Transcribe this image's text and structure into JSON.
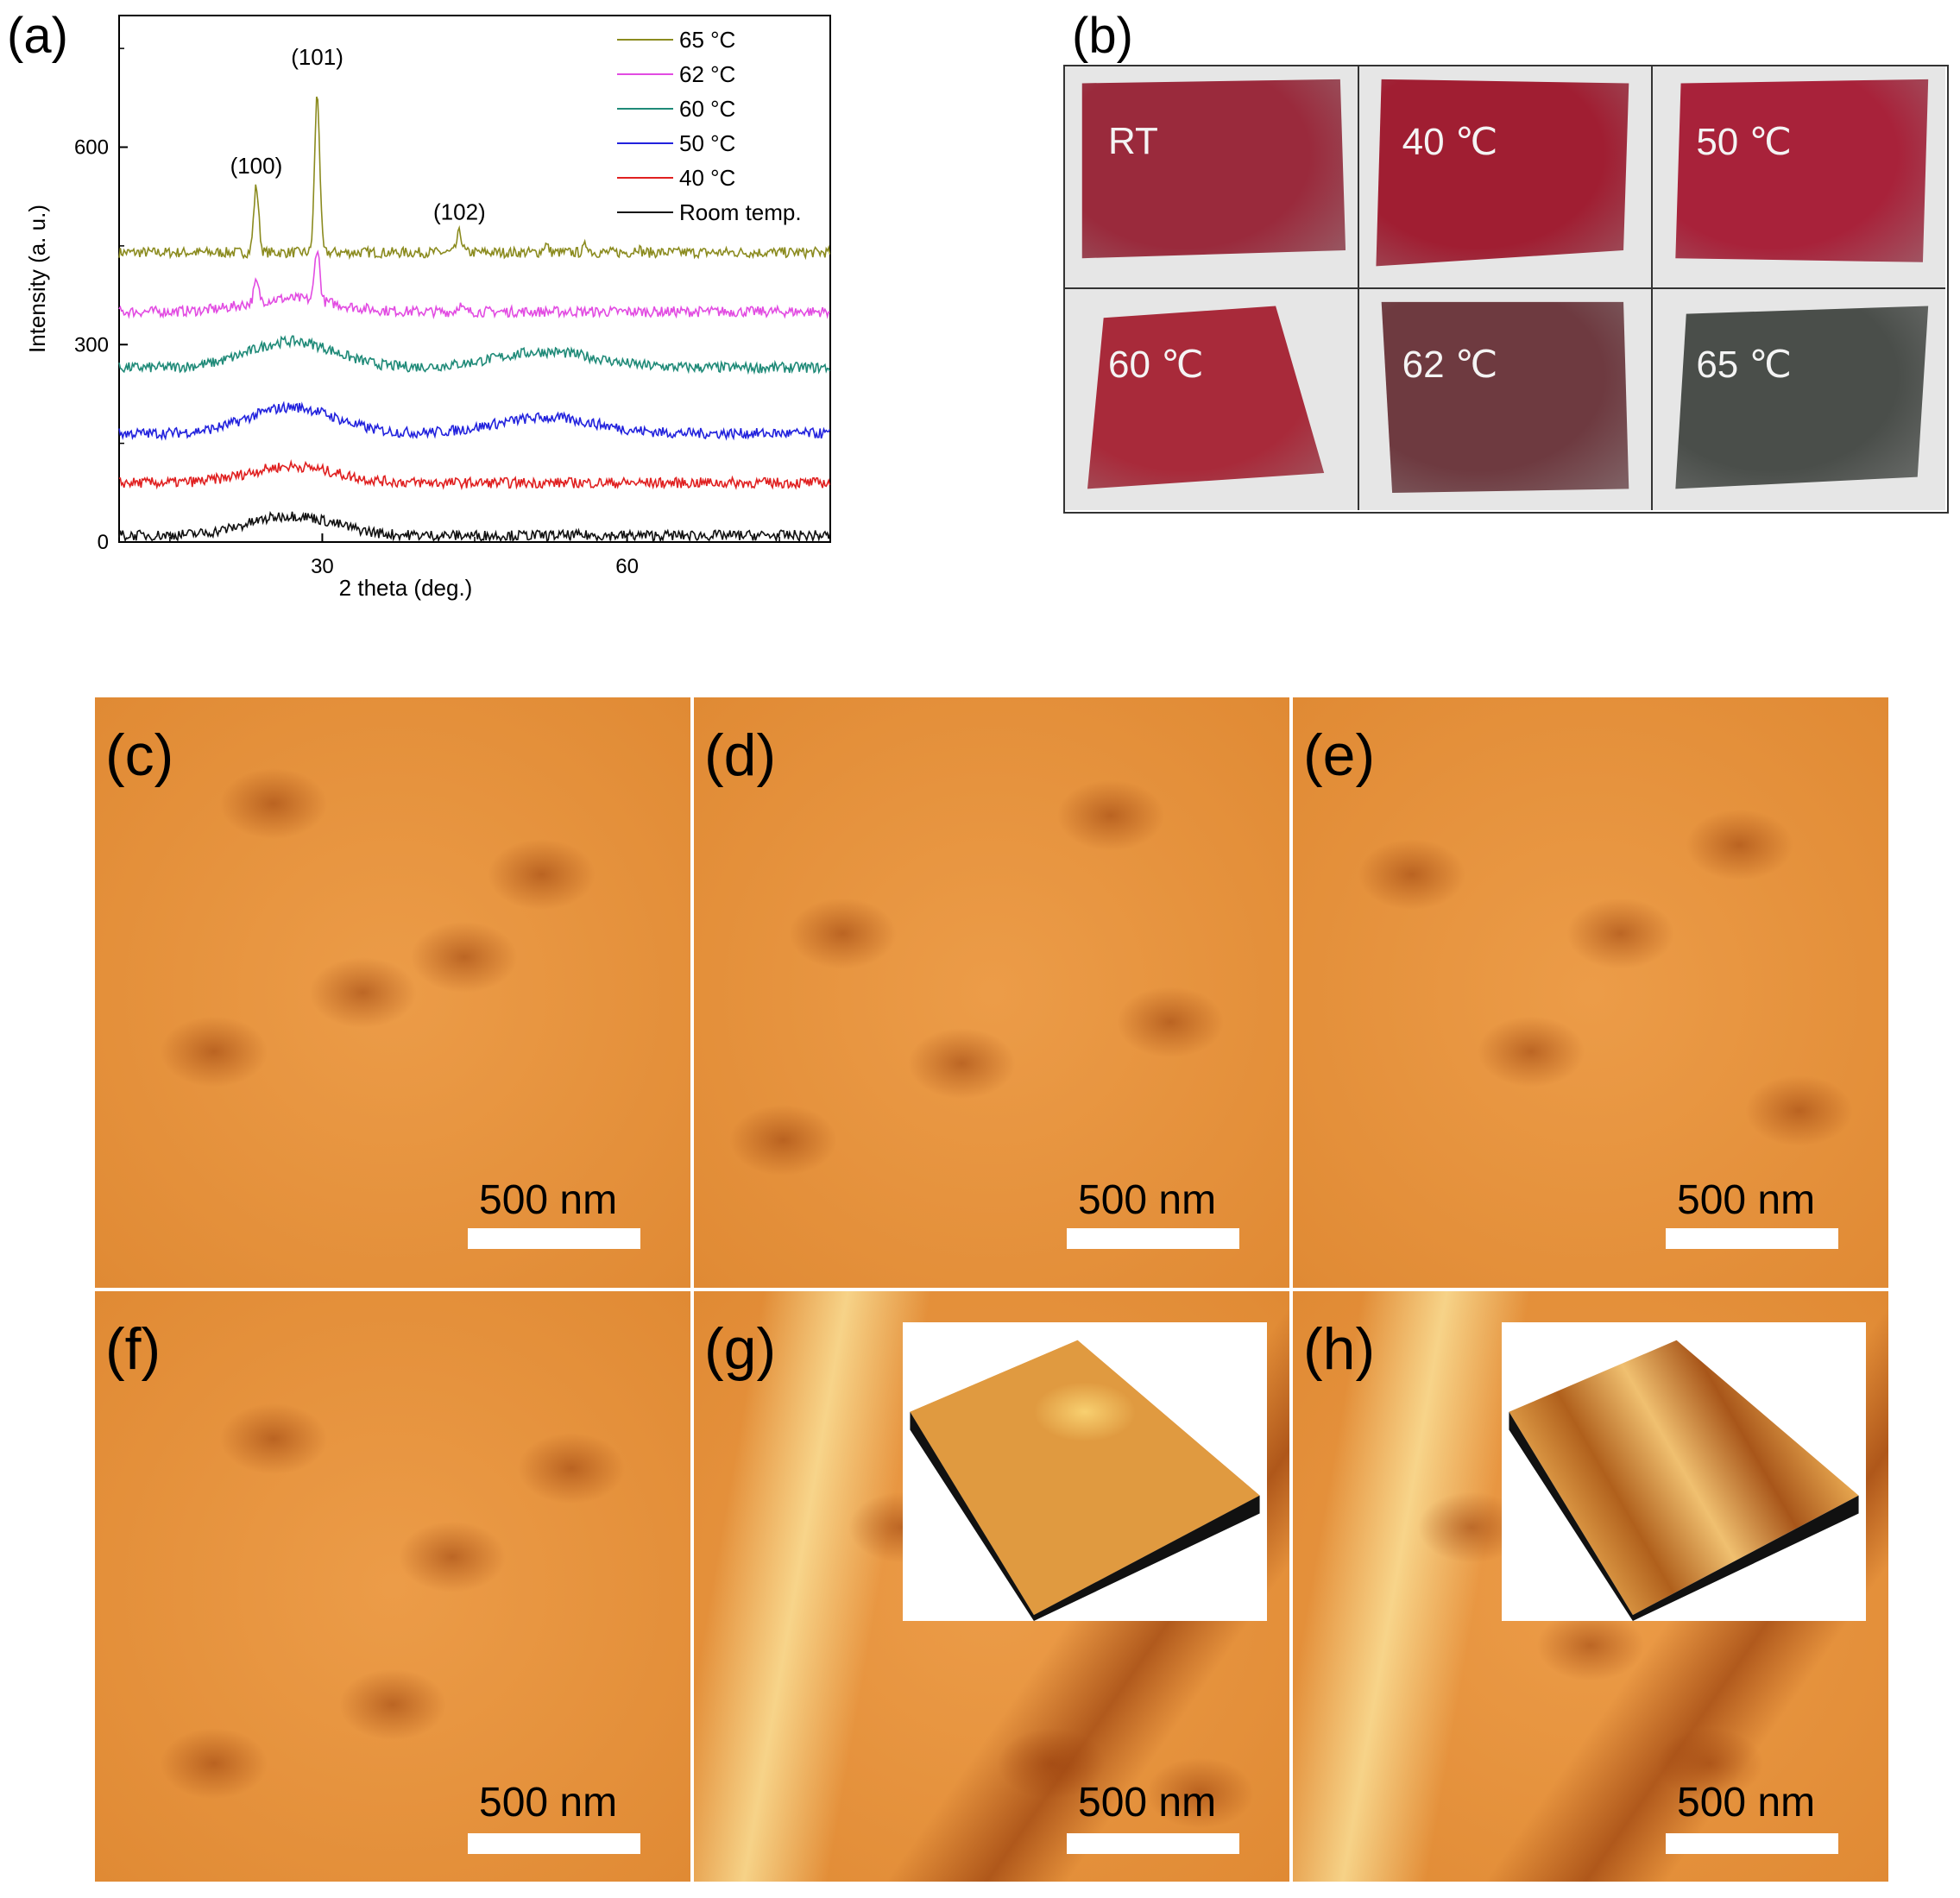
{
  "panel_a": {
    "letter": "(a)",
    "chart_data": {
      "type": "line",
      "xlabel": "2 theta (deg.)",
      "ylabel": "Intensity (a. u.)",
      "x_ticks": [
        "30",
        "60"
      ],
      "y_ticks": [
        "0",
        "300",
        "600"
      ],
      "xlim": [
        10,
        80
      ],
      "ylim": [
        0,
        800
      ],
      "peak_labels": [
        {
          "text": "(100)",
          "x": 23.5,
          "y": 560
        },
        {
          "text": "(101)",
          "x": 29.5,
          "y": 725
        },
        {
          "text": "(102)",
          "x": 43.5,
          "y": 490
        }
      ],
      "legend_position": "top-right",
      "series": [
        {
          "name": "65 °C",
          "color": "#8b8b1f",
          "baseline": 440,
          "hump": 0,
          "peaks": [
            [
              23.5,
              100
            ],
            [
              29.5,
              240
            ],
            [
              43.5,
              30
            ],
            [
              52,
              12
            ],
            [
              56,
              12
            ],
            [
              61,
              8
            ]
          ]
        },
        {
          "name": "62 °C",
          "color": "#e24ce2",
          "baseline": 350,
          "hump": 20,
          "peaks": [
            [
              23.5,
              30
            ],
            [
              29.5,
              80
            ],
            [
              43.5,
              10
            ]
          ]
        },
        {
          "name": "60 °C",
          "color": "#1f8a78",
          "baseline": 265,
          "hump": 40,
          "peaks": []
        },
        {
          "name": "50 °C",
          "color": "#2222dd",
          "baseline": 165,
          "hump": 40,
          "peaks": []
        },
        {
          "name": "40 °C",
          "color": "#e02020",
          "baseline": 90,
          "hump": 25,
          "peaks": []
        },
        {
          "name": "Room temp.",
          "color": "#111111",
          "baseline": 10,
          "hump": 30,
          "peaks": []
        }
      ]
    }
  },
  "panel_b": {
    "letter": "(b)",
    "photos": [
      {
        "label": "RT",
        "color": "#9a2a3c"
      },
      {
        "label": "40 ℃",
        "color": "#a01e32"
      },
      {
        "label": "50 ℃",
        "color": "#a8223a"
      },
      {
        "label": "60 ℃",
        "color": "#a82a3a"
      },
      {
        "label": "62 ℃",
        "color": "#6e3a40"
      },
      {
        "label": "65 ℃",
        "color": "#4a4e4a"
      }
    ]
  },
  "afm": {
    "scale_label": "500 nm",
    "panels": [
      {
        "letter": "(c)"
      },
      {
        "letter": "(d)"
      },
      {
        "letter": "(e)"
      },
      {
        "letter": "(f)"
      },
      {
        "letter": "(g)"
      },
      {
        "letter": "(h)"
      }
    ]
  }
}
